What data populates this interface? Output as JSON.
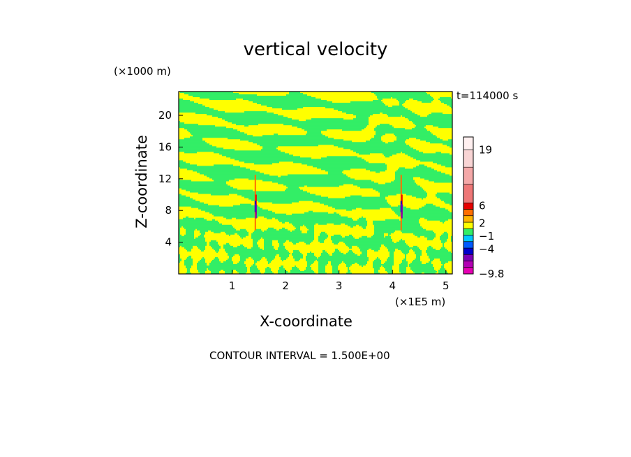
{
  "chart_data": {
    "type": "heatmap",
    "title": "vertical velocity",
    "xlabel": "X-coordinate",
    "ylabel": "Z-coordinate",
    "x_unit": "(×1E5 m)",
    "z_unit": "(×1000 m)",
    "time_label": "t=114000 s",
    "contour_label": "CONTOUR INTERVAL = 1.500E+00",
    "xlim": [
      0,
      5.12
    ],
    "ylim": [
      0,
      23
    ],
    "x_ticks": [
      "1",
      "2",
      "3",
      "4",
      "5"
    ],
    "y_ticks": [
      "4",
      "8",
      "12",
      "16",
      "20"
    ],
    "colorbar": {
      "labels": [
        "19",
        "6",
        "2",
        "−1",
        "−4",
        "−9.8"
      ],
      "levels": [
        -9.8,
        -8.3,
        -6.8,
        -5.3,
        -3.8,
        -2.3,
        -0.8,
        0.7,
        2.2,
        3.7,
        5.2,
        6.7,
        11,
        15,
        19,
        22
      ],
      "colors": [
        "#e600b4",
        "#b300b4",
        "#7d00b4",
        "#0000cd",
        "#005aff",
        "#00c8ff",
        "#33ee66",
        "#ffff00",
        "#ffb400",
        "#ff6e00",
        "#e60000",
        "#ee7777",
        "#f4a8a8",
        "#f8d4d4",
        "#fff0f0"
      ]
    },
    "field_colors": {
      "low": "#33ee66",
      "high": "#ffff00"
    },
    "updraft_columns_x": [
      1.44,
      4.17
    ]
  }
}
